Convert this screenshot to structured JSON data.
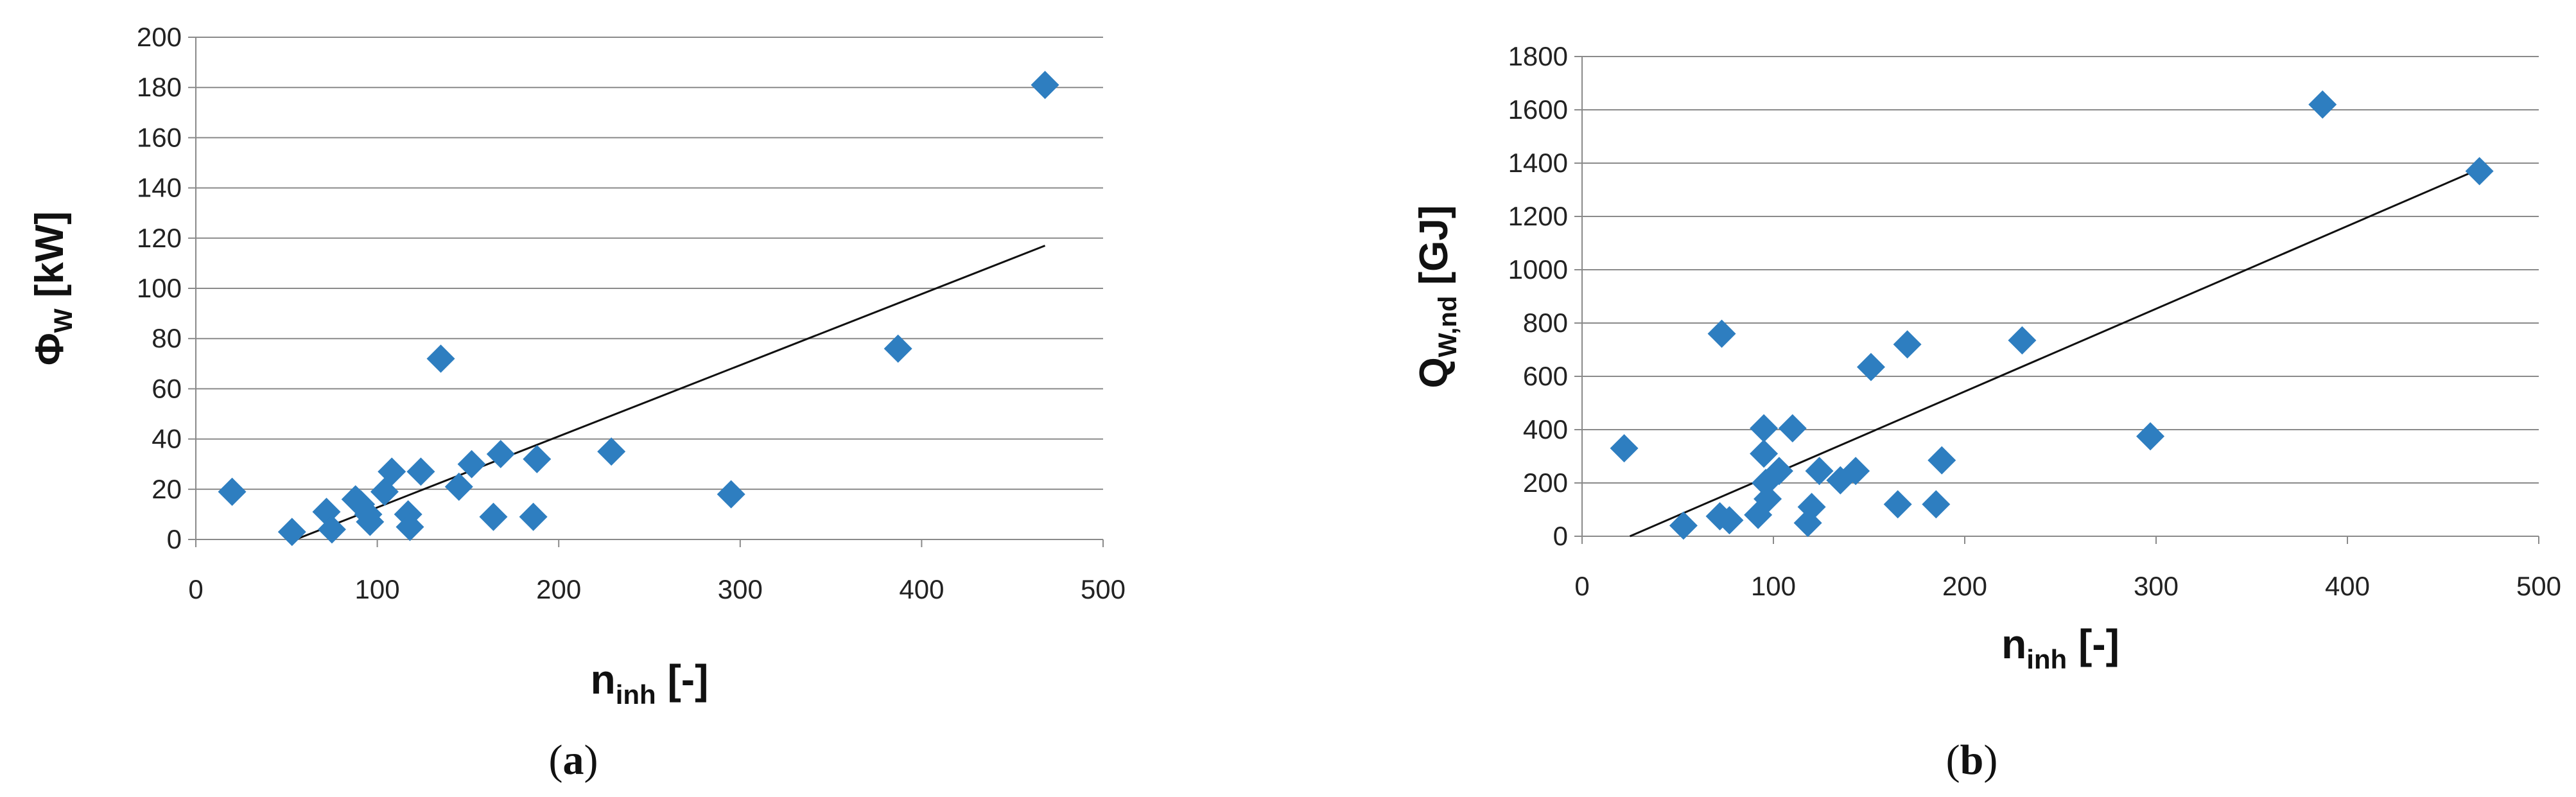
{
  "chart_data": [
    {
      "type": "scatter",
      "panel_label": "(a)",
      "panel_letter": "a",
      "ylabel": {
        "main": "Φ",
        "sub": "W",
        "unit": "[kW]"
      },
      "xlabel": {
        "main": "n",
        "sub": "inh",
        "unit": "[-]"
      },
      "xlim": [
        0,
        500
      ],
      "ylim": [
        0,
        200
      ],
      "xticks": [
        "0",
        "100",
        "200",
        "300",
        "400",
        "500"
      ],
      "yticks": [
        "0",
        "20",
        "40",
        "60",
        "80",
        "100",
        "120",
        "140",
        "160",
        "180",
        "200"
      ],
      "grid": "horizontal",
      "marker_color": "#2E7EC0",
      "points": [
        [
          20,
          19
        ],
        [
          53,
          3
        ],
        [
          72,
          11
        ],
        [
          75,
          4
        ],
        [
          88,
          16
        ],
        [
          91,
          14
        ],
        [
          95,
          10
        ],
        [
          96,
          7
        ],
        [
          104,
          19
        ],
        [
          108,
          27
        ],
        [
          117,
          10
        ],
        [
          118,
          5
        ],
        [
          124,
          27
        ],
        [
          135,
          72
        ],
        [
          145,
          21
        ],
        [
          152,
          30
        ],
        [
          164,
          9
        ],
        [
          168,
          34
        ],
        [
          186,
          9
        ],
        [
          188,
          32
        ],
        [
          229,
          35
        ],
        [
          295,
          18
        ],
        [
          387,
          76
        ],
        [
          468,
          181
        ]
      ],
      "trendline": [
        [
          55,
          0
        ],
        [
          468,
          117
        ]
      ]
    },
    {
      "type": "scatter",
      "panel_label": "(b)",
      "panel_letter": "b",
      "ylabel": {
        "main": "Q",
        "sub": "W,nd",
        "unit": "[GJ]"
      },
      "xlabel": {
        "main": "n",
        "sub": "inh",
        "unit": "[-]"
      },
      "xlim": [
        0,
        500
      ],
      "ylim": [
        0,
        1800
      ],
      "xticks": [
        "0",
        "100",
        "200",
        "300",
        "400",
        "500"
      ],
      "yticks": [
        "0",
        "200",
        "400",
        "600",
        "800",
        "1000",
        "1200",
        "1400",
        "1600",
        "1800"
      ],
      "grid": "horizontal",
      "marker_color": "#2E7EC0",
      "points": [
        [
          22,
          330
        ],
        [
          53,
          40
        ],
        [
          72,
          75
        ],
        [
          73,
          760
        ],
        [
          77,
          60
        ],
        [
          92,
          80
        ],
        [
          95,
          405
        ],
        [
          95,
          310
        ],
        [
          96,
          200
        ],
        [
          97,
          140
        ],
        [
          103,
          245
        ],
        [
          110,
          405
        ],
        [
          118,
          50
        ],
        [
          120,
          110
        ],
        [
          124,
          245
        ],
        [
          135,
          210
        ],
        [
          143,
          245
        ],
        [
          151,
          635
        ],
        [
          165,
          120
        ],
        [
          170,
          720
        ],
        [
          185,
          120
        ],
        [
          188,
          285
        ],
        [
          230,
          735
        ],
        [
          297,
          375
        ],
        [
          387,
          1620
        ],
        [
          469,
          1370
        ]
      ],
      "trendline": [
        [
          25,
          0
        ],
        [
          468,
          1375
        ]
      ]
    }
  ]
}
